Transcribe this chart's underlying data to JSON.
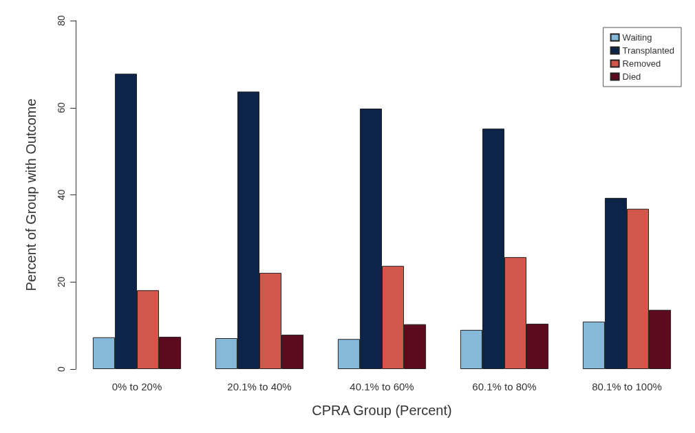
{
  "chart_data": {
    "type": "bar",
    "xlabel": "CPRA Group (Percent)",
    "ylabel": "Percent of Group with Outcome",
    "categories": [
      "0% to 20%",
      "20.1% to 40%",
      "40.1% to 60%",
      "60.1% to 80%",
      "80.1% to 100%"
    ],
    "series": [
      {
        "name": "Waiting",
        "color": "#86b9d9",
        "values": [
          7.3,
          7.1,
          6.9,
          9.0,
          10.9
        ]
      },
      {
        "name": "Transplanted",
        "color": "#0c2448",
        "values": [
          67.8,
          63.7,
          59.8,
          55.2,
          39.3
        ]
      },
      {
        "name": "Removed",
        "color": "#d2574b",
        "values": [
          18.1,
          22.1,
          23.7,
          25.7,
          36.8
        ]
      },
      {
        "name": "Died",
        "color": "#5c0b1e",
        "values": [
          7.4,
          7.9,
          10.3,
          10.4,
          13.6
        ]
      }
    ],
    "ylim": [
      0,
      80
    ],
    "yticks": [
      0,
      20,
      40,
      60,
      80
    ],
    "grid": false,
    "legend": "top right"
  }
}
